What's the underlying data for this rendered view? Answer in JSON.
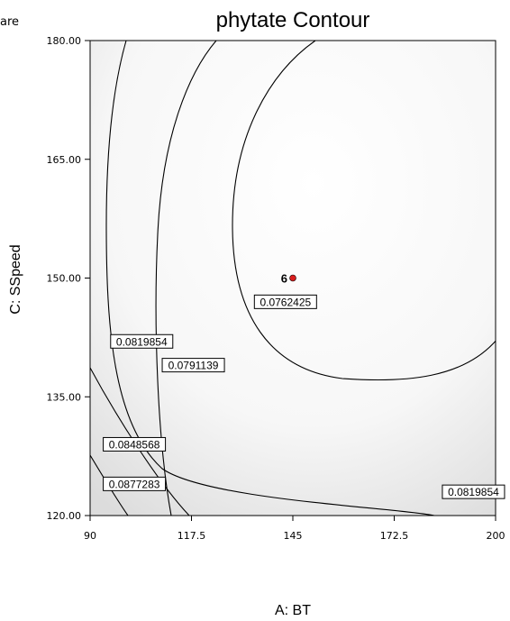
{
  "chart_data": {
    "type": "contour",
    "title": "phytate Contour",
    "corner_text": "are",
    "xlabel": "A: BT",
    "ylabel": "C: SSpeed",
    "xlim": [
      90,
      200
    ],
    "ylim": [
      120,
      180
    ],
    "x_ticks": [
      "90",
      "117.5",
      "145",
      "172.5",
      "200"
    ],
    "y_ticks": [
      "120.00",
      "135.00",
      "150.00",
      "165.00",
      "180.00"
    ],
    "contours": [
      {
        "level": "0.0762425",
        "label_at": [
          143,
          147
        ]
      },
      {
        "level": "0.0791139",
        "label_at": [
          118,
          139
        ]
      },
      {
        "level": "0.0819854",
        "label_at": [
          104,
          142
        ],
        "label2_at": [
          194,
          123
        ]
      },
      {
        "level": "0.0848568",
        "label_at": [
          102,
          129
        ]
      },
      {
        "level": "0.0877283",
        "label_at": [
          102,
          124
        ]
      }
    ],
    "design_point": {
      "x": 145,
      "y": 150,
      "label": "6",
      "color": "#d91e1e"
    },
    "grid": false
  }
}
